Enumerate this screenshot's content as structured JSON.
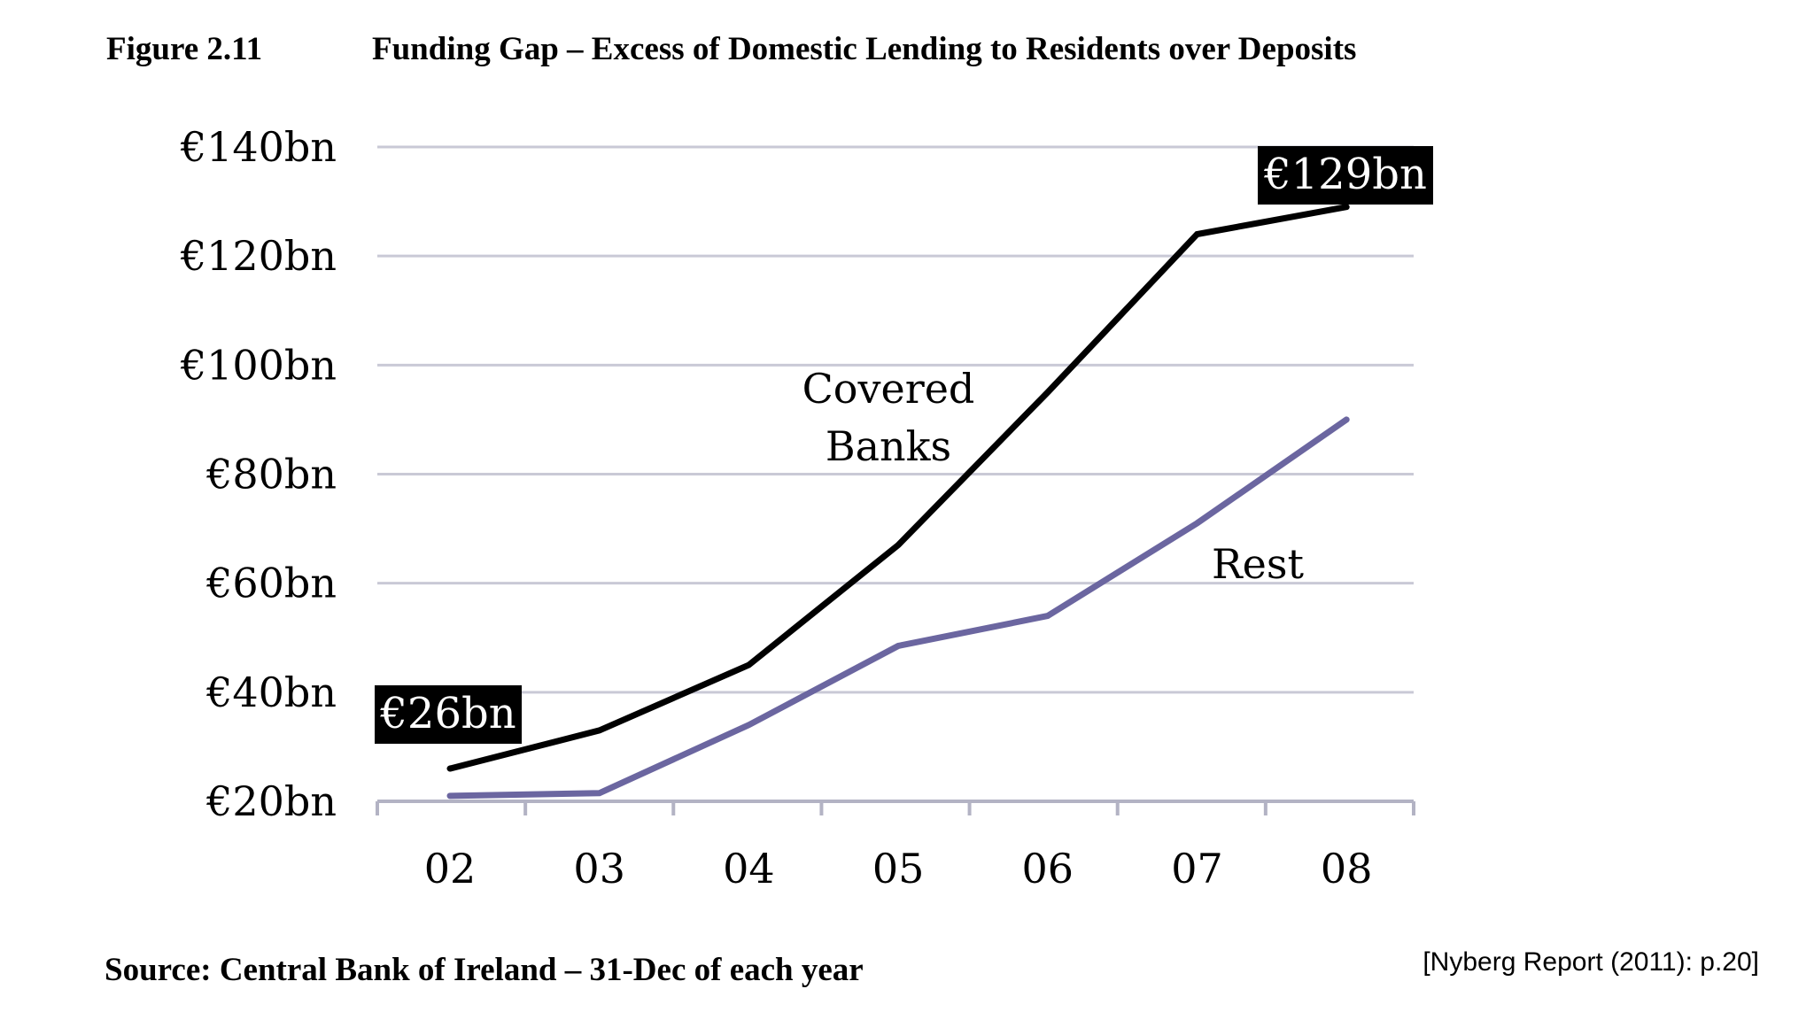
{
  "figure": {
    "label": "Figure 2.11",
    "title": "Funding Gap – Excess of Domestic Lending to Residents over Deposits"
  },
  "source": "Source: Central Bank of Ireland – 31-Dec of each year",
  "citation": "[Nyberg Report (2011): p.20]",
  "colors": {
    "covered_banks": "#000000",
    "rest": "#6b66a0",
    "grid": "#c9c9d6",
    "axis": "#b3b3c4",
    "callout_bg": "#000000"
  },
  "chart_data": {
    "type": "line",
    "categories": [
      "02",
      "03",
      "04",
      "05",
      "06",
      "07",
      "08"
    ],
    "ylim": [
      20,
      140
    ],
    "y_ticks": [
      20,
      40,
      60,
      80,
      100,
      120,
      140
    ],
    "y_tick_labels": [
      "€20bn",
      "€40bn",
      "€60bn",
      "€80bn",
      "€100bn",
      "€120bn",
      "€140bn"
    ],
    "grid": true,
    "series": [
      {
        "name": "Covered Banks",
        "label_lines": [
          "Covered",
          "Banks"
        ],
        "values": [
          26,
          33,
          45,
          67,
          95,
          124,
          129
        ]
      },
      {
        "name": "Rest",
        "label_lines": [
          "Rest"
        ],
        "values": [
          21,
          21.5,
          34,
          48.5,
          54,
          71,
          90
        ]
      }
    ],
    "annotations": [
      {
        "text": "€26bn",
        "series": 0,
        "index": 0
      },
      {
        "text": "€129bn",
        "series": 0,
        "index": 6
      }
    ]
  }
}
